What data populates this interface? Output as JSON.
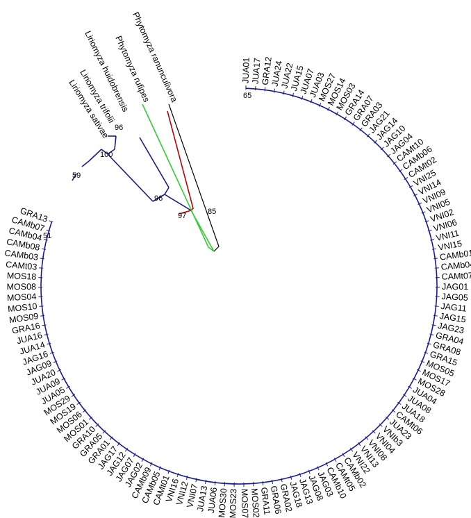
{
  "colors": {
    "main_clade": "#1a1a8c",
    "outgroup_black": "#000000",
    "outgroup_red": "#c00000",
    "outgroup_green": "#33cc33"
  },
  "outgroups": [
    {
      "label": "Phytomyza ranunculivora",
      "color": "black"
    },
    {
      "label": "Phytomyza rufipes",
      "color": "green"
    },
    {
      "label": "Liriomyza huidobrensis",
      "color": "red"
    },
    {
      "label": "Liriomyza trifolii",
      "color": "blue"
    },
    {
      "label": "Liriomyza sativae",
      "color": "blue"
    }
  ],
  "leaves": [
    "JUA01",
    "JUA17",
    "GRA12",
    "JUA24",
    "JUA22",
    "JUA15",
    "JUA07",
    "JUA03",
    "MOS27",
    "MOS14",
    "MOS03",
    "GRA14",
    "GRA07",
    "GRA03",
    "JAG21",
    "JAG14",
    "JAG10",
    "JAG04",
    "CAMt10",
    "CAMb06",
    "CAMt02",
    "VNI25",
    "VNI14",
    "VNI09",
    "VNI05",
    "VNI02",
    "VNI06",
    "VNI11",
    "VNI15",
    "CAMb01",
    "CAMb04",
    "CAMt07",
    "JAG01",
    "JAG05",
    "JAG11",
    "JAG15",
    "JAG23",
    "GRA04",
    "GRA08",
    "GRA15",
    "MOS05",
    "MOS17",
    "MOS28",
    "JUA04",
    "JUA08",
    "JUA18",
    "CAMt06",
    "JUA23",
    "VNIb3",
    "VNI04",
    "VNI08",
    "VNI13",
    "VNI22",
    "CAMb02",
    "CAMt05",
    "CAMb10",
    "JAG03",
    "JAG08",
    "JAG13",
    "JAG18",
    "GRA02",
    "GRA06",
    "GRA11",
    "MOS02",
    "MOS07",
    "MOS23",
    "MOS30",
    "JUA06",
    "JUA13",
    "VNI07",
    "VNI12",
    "VNI16",
    "CAMt01",
    "CAMb05",
    "CAMb09",
    "JAG02",
    "JAG07",
    "JAG12",
    "JAG17",
    "GRA01",
    "GRA05",
    "GRA10",
    "MOS01",
    "MOS06",
    "MOS19",
    "MOS29",
    "JUA05",
    "JUA09",
    "JUA20",
    "JAG09",
    "JAG16",
    "JUA14",
    "JUA16",
    "GRA16",
    "MOS09",
    "MOS10",
    "MOS04",
    "MOS08",
    "MOS18",
    "CAMt03",
    "CAMb03",
    "CAMb08",
    "CAMb04",
    "CAMb07",
    "GRA13"
  ],
  "bootstrap": [
    "65",
    "96",
    "100",
    "59",
    "51",
    "96",
    "97",
    "85"
  ]
}
